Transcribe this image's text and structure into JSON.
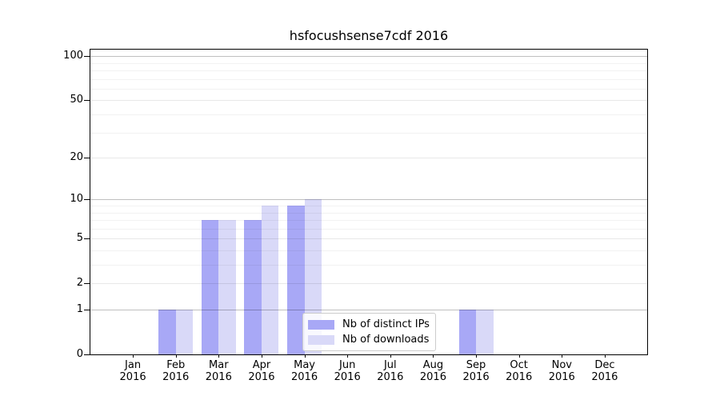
{
  "figure": {
    "title": "hsfocushsense7cdf 2016",
    "background": "#ffffff"
  },
  "chart_data": {
    "type": "bar",
    "title": "hsfocushsense7cdf 2016",
    "x_categories": [
      "Jan 2016",
      "Feb 2016",
      "Mar 2016",
      "Apr 2016",
      "May 2016",
      "Jun 2016",
      "Jul 2016",
      "Aug 2016",
      "Sep 2016",
      "Oct 2016",
      "Nov 2016",
      "Dec 2016"
    ],
    "series": [
      {
        "name": "Nb of distinct IPs",
        "color": "#a8a8f6",
        "values": [
          0,
          1,
          7,
          7,
          9,
          0,
          0,
          0,
          1,
          0,
          0,
          0
        ]
      },
      {
        "name": "Nb of downloads",
        "color": "#d9d9f8",
        "values": [
          0,
          1,
          7,
          9,
          10,
          0,
          0,
          0,
          1,
          0,
          0,
          0
        ]
      }
    ],
    "xlabel": "",
    "ylabel": "",
    "yscale": "log1p",
    "yticks": [
      0,
      1,
      2,
      5,
      10,
      20,
      50,
      100
    ],
    "yticks_major": [
      1,
      10,
      100
    ],
    "yticks_minor": [
      3,
      4,
      6,
      7,
      8,
      9,
      30,
      40,
      60,
      70,
      80,
      90
    ],
    "ylim": [
      0,
      113
    ],
    "grid": true,
    "legend": {
      "position": "lower-center",
      "entries": [
        "Nb of distinct IPs",
        "Nb of downloads"
      ]
    }
  },
  "colors": {
    "bar_distinct_ips": "#a8a8f6",
    "bar_downloads": "#d9d9f8",
    "grid_major": "rgba(0,0,0,0.25)",
    "grid_mid": "rgba(0,0,0,0.09)",
    "grid_minor": "rgba(0,0,0,0.05)",
    "axis": "#000000",
    "legend_border": "#cccccc",
    "legend_bg": "rgba(255,255,255,0.8)"
  }
}
